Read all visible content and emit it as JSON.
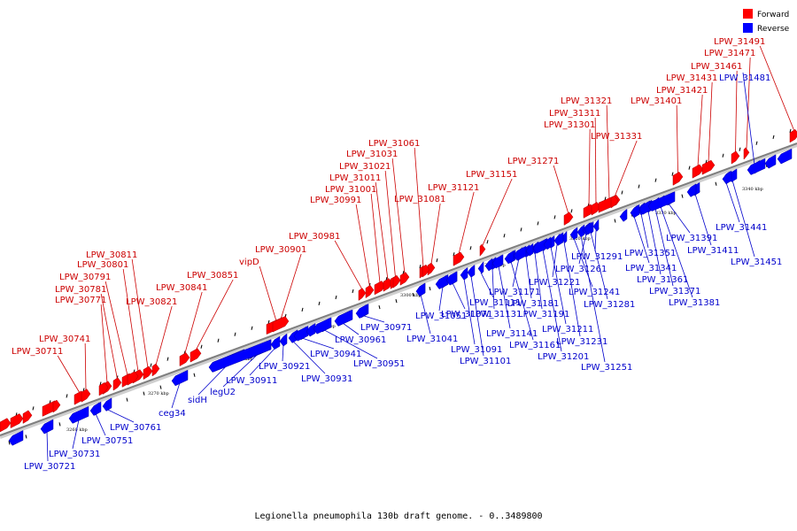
{
  "caption": "Legionella pneumophila 130b draft genome. - 0..3489800",
  "legend": [
    {
      "label": "Forward",
      "color": "#ff0000"
    },
    {
      "label": "Reverse",
      "color": "#0000ff"
    }
  ],
  "colors": {
    "forward": "#ff0000",
    "forward_label": "#cc0000",
    "reverse": "#0000ff",
    "reverse_label": "#0000cc",
    "track": "#7f7f7f"
  },
  "scale_labels": [
    "3260 kbp",
    "3270 kbp",
    "3280 kbp",
    "3290 kbp",
    "3300 kbp",
    "3310 kbp",
    "3320 kbp",
    "3330 kbp",
    "3340 kbp"
  ],
  "forward_genes": [
    "LPW_30711",
    "LPW_30741",
    "LPW_30771",
    "LPW_30781",
    "LPW_30791",
    "LPW_30801",
    "LPW_30811",
    "LPW_30821",
    "LPW_30841",
    "LPW_30851",
    "vipD",
    "LPW_30901",
    "LPW_30981",
    "LPW_30991",
    "LPW_31001",
    "LPW_31011",
    "LPW_31021",
    "LPW_31031",
    "LPW_31061",
    "LPW_31081",
    "LPW_31121",
    "LPW_31151",
    "LPW_31271",
    "LPW_31301",
    "LPW_31311",
    "LPW_31321",
    "LPW_31331",
    "LPW_31401",
    "LPW_31421",
    "LPW_31431",
    "LPW_31461",
    "LPW_31471",
    "LPW_31491"
  ],
  "reverse_genes": [
    "LPW_30721",
    "LPW_30731",
    "LPW_30751",
    "LPW_30761",
    "ceg34",
    "sidH",
    "legU2",
    "LPW_30911",
    "LPW_30921",
    "LPW_30931",
    "LPW_30941",
    "LPW_30951",
    "LPW_30961",
    "LPW_30971",
    "LPW_31041",
    "LPW_31051",
    "LPW_31071",
    "LPW_31091",
    "LPW_31101",
    "LPW_31111",
    "LPW_31131",
    "LPW_31141",
    "LPW_31161",
    "LPW_31171",
    "LPW_31181",
    "LPW_31191",
    "LPW_31201",
    "LPW_31211",
    "LPW_31221",
    "LPW_31231",
    "LPW_31241",
    "LPW_31251",
    "LPW_31261",
    "LPW_31281",
    "LPW_31291",
    "LPW_31341",
    "LPW_31351",
    "LPW_31361",
    "LPW_31371",
    "LPW_31381",
    "LPW_31391",
    "LPW_31411",
    "LPW_31441",
    "LPW_31451",
    "LPW_31481"
  ]
}
